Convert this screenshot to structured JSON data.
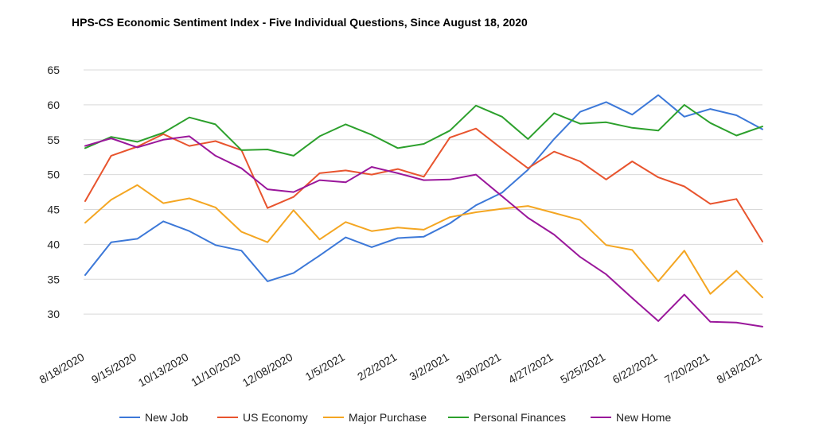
{
  "chart_data": {
    "type": "line",
    "title": "HPS-CS Economic Sentiment Index - Five Individual Questions, Since August 18, 2020",
    "xlabel": "",
    "ylabel": "",
    "ylim": [
      25,
      65
    ],
    "y_ticks": [
      30,
      35,
      40,
      45,
      50,
      55,
      60,
      65
    ],
    "grid": true,
    "legend_position": "bottom",
    "x": [
      "8/18/2020",
      "9/1/2020",
      "9/15/2020",
      "9/29/2020",
      "10/13/2020",
      "10/27/2020",
      "11/10/2020",
      "11/24/2020",
      "12/08/2020",
      "12/22/2020",
      "1/5/2021",
      "1/19/2021",
      "2/2/2021",
      "2/16/2021",
      "3/2/2021",
      "3/16/2021",
      "3/30/2021",
      "4/13/2021",
      "4/27/2021",
      "5/11/2021",
      "5/25/2021",
      "6/8/2021",
      "6/22/2021",
      "7/6/2021",
      "7/20/2021",
      "8/3/2021",
      "8/18/2021"
    ],
    "x_tick_labels": [
      "8/18/2020",
      "9/15/2020",
      "10/13/2020",
      "11/10/2020",
      "12/08/2020",
      "1/5/2021",
      "2/2/2021",
      "3/2/2021",
      "3/30/2021",
      "4/27/2021",
      "5/25/2021",
      "6/22/2021",
      "7/20/2021",
      "8/18/2021"
    ],
    "series": [
      {
        "name": "New Job",
        "color": "#3c78d8",
        "values": [
          35.6,
          40.3,
          40.8,
          43.3,
          41.9,
          39.9,
          39.1,
          34.7,
          35.9,
          38.4,
          41.0,
          39.6,
          40.9,
          41.1,
          43.0,
          45.6,
          47.4,
          50.7,
          55.1,
          59.0,
          60.4,
          58.6,
          61.4,
          58.3,
          59.4,
          58.5,
          56.5
        ]
      },
      {
        "name": "US Economy",
        "color": "#e8542e",
        "values": [
          46.2,
          52.7,
          54.0,
          55.8,
          54.1,
          54.8,
          53.5,
          45.2,
          46.8,
          50.2,
          50.6,
          50.0,
          50.8,
          49.7,
          55.3,
          56.6,
          53.7,
          50.9,
          53.3,
          51.9,
          49.3,
          51.9,
          49.6,
          48.3,
          45.8,
          46.5,
          40.4
        ]
      },
      {
        "name": "Major Purchase",
        "color": "#f4a622",
        "values": [
          43.1,
          46.4,
          48.5,
          45.9,
          46.6,
          45.3,
          41.8,
          40.3,
          44.9,
          40.7,
          43.2,
          41.9,
          42.4,
          42.1,
          43.9,
          44.6,
          45.1,
          45.5,
          44.5,
          43.5,
          39.9,
          39.2,
          34.7,
          39.1,
          32.9,
          36.2,
          32.4
        ]
      },
      {
        "name": "Personal Finances",
        "color": "#2ca02c",
        "values": [
          53.8,
          55.4,
          54.7,
          56.0,
          58.2,
          57.2,
          53.5,
          53.6,
          52.7,
          55.5,
          57.2,
          55.7,
          53.8,
          54.4,
          56.3,
          59.9,
          58.3,
          55.1,
          58.8,
          57.3,
          57.5,
          56.7,
          56.3,
          60.0,
          57.4,
          55.6,
          56.9
        ]
      },
      {
        "name": "New Home",
        "color": "#9a179b",
        "values": [
          54.1,
          55.2,
          53.9,
          55.0,
          55.5,
          52.7,
          50.9,
          47.9,
          47.5,
          49.2,
          48.9,
          51.1,
          50.2,
          49.2,
          49.3,
          50.0,
          46.9,
          43.8,
          41.4,
          38.2,
          35.7,
          32.3,
          29.0,
          32.8,
          28.9,
          28.8,
          28.2
        ]
      }
    ]
  }
}
